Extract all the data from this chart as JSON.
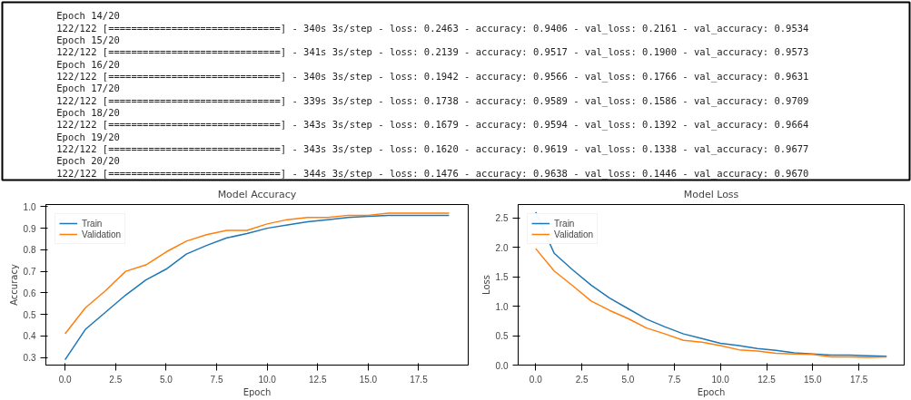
{
  "chart_data": [
    {
      "type": "other",
      "annotations": [
        "Epoch 14/20",
        "122/122 [==============================] - 340s 3s/step - loss: 0.2463 - accuracy: 0.9406 - val_loss: 0.2161 - val_accuracy: 0.9534",
        "Epoch 15/20",
        "122/122 [==============================] - 341s 3s/step - loss: 0.2139 - accuracy: 0.9517 - val_loss: 0.1900 - val_accuracy: 0.9573",
        "Epoch 16/20",
        "122/122 [==============================] - 340s 3s/step - loss: 0.1942 - accuracy: 0.9566 - val_loss: 0.1766 - val_accuracy: 0.9631",
        "Epoch 17/20",
        "122/122 [==============================] - 339s 3s/step - loss: 0.1738 - accuracy: 0.9589 - val_loss: 0.1586 - val_accuracy: 0.9709",
        "Epoch 18/20",
        "122/122 [==============================] - 343s 3s/step - loss: 0.1679 - accuracy: 0.9594 - val_loss: 0.1392 - val_accuracy: 0.9664",
        "Epoch 19/20",
        "122/122 [==============================] - 343s 3s/step - loss: 0.1620 - accuracy: 0.9619 - val_loss: 0.1338 - val_accuracy: 0.9677",
        "Epoch 20/20",
        "122/122 [==============================] - 344s 3s/step - loss: 0.1476 - accuracy: 0.9638 - val_loss: 0.1446 - val_accuracy: 0.9670"
      ]
    },
    {
      "type": "line",
      "title": "Model Accuracy",
      "xlabel": "Epoch",
      "ylabel": "Accuracy",
      "x": [
        0,
        1,
        2,
        3,
        4,
        5,
        6,
        7,
        8,
        9,
        10,
        11,
        12,
        13,
        14,
        15,
        16,
        17,
        18,
        19
      ],
      "series": [
        {
          "name": "Train",
          "color": "#1f77b4",
          "values": [
            0.29,
            0.43,
            0.51,
            0.59,
            0.66,
            0.71,
            0.78,
            0.82,
            0.855,
            0.875,
            0.9,
            0.915,
            0.93,
            0.94,
            0.95,
            0.955,
            0.96,
            0.96,
            0.96,
            0.96
          ]
        },
        {
          "name": "Validation",
          "color": "#ff7f0e",
          "values": [
            0.41,
            0.53,
            0.61,
            0.7,
            0.73,
            0.79,
            0.84,
            0.87,
            0.89,
            0.89,
            0.92,
            0.94,
            0.95,
            0.95,
            0.96,
            0.96,
            0.97,
            0.97,
            0.97,
            0.97
          ]
        }
      ],
      "xlim": [
        -0.95,
        19.95
      ],
      "ylim": [
        0.265,
        1.01
      ],
      "xticks": [
        {
          "value": 0,
          "label": "0.0"
        },
        2.5,
        {
          "value": 5,
          "label": "5.0"
        },
        7.5,
        {
          "value": 10,
          "label": "10.0"
        },
        12.5,
        {
          "value": 15,
          "label": "15.0"
        },
        17.5
      ],
      "yticks": [
        0.3,
        0.4,
        0.5,
        0.6,
        0.7,
        0.8,
        0.9,
        {
          "value": 1,
          "label": "1.0"
        }
      ],
      "grid": false,
      "legend": "top left",
      "marker": "none",
      "line_style": "solid"
    },
    {
      "type": "line",
      "title": "Model Loss",
      "xlabel": "Epoch",
      "ylabel": "Loss",
      "x": [
        0,
        1,
        2,
        3,
        4,
        5,
        6,
        7,
        8,
        9,
        10,
        11,
        12,
        13,
        14,
        15,
        16,
        17,
        18,
        19
      ],
      "series": [
        {
          "name": "Train",
          "color": "#1f77b4",
          "values": [
            2.6,
            1.9,
            1.62,
            1.36,
            1.14,
            0.96,
            0.78,
            0.65,
            0.53,
            0.45,
            0.37,
            0.33,
            0.28,
            0.25,
            0.21,
            0.19,
            0.17,
            0.17,
            0.16,
            0.15
          ]
        },
        {
          "name": "Validation",
          "color": "#ff7f0e",
          "values": [
            1.98,
            1.6,
            1.35,
            1.09,
            0.93,
            0.79,
            0.63,
            0.53,
            0.42,
            0.39,
            0.33,
            0.26,
            0.24,
            0.2,
            0.19,
            0.18,
            0.14,
            0.14,
            0.13,
            0.14
          ]
        }
      ],
      "xlim": [
        -0.95,
        19.95
      ],
      "ylim": [
        0,
        2.73
      ],
      "xticks": [
        {
          "value": 0,
          "label": "0.0"
        },
        2.5,
        {
          "value": 5,
          "label": "5.0"
        },
        7.5,
        {
          "value": 10,
          "label": "10.0"
        },
        12.5,
        {
          "value": 15,
          "label": "15.0"
        },
        17.5
      ],
      "yticks": [
        {
          "value": 0,
          "label": "0.0"
        },
        0.5,
        {
          "value": 1,
          "label": "1.0"
        },
        1.5,
        {
          "value": 2,
          "label": "2.0"
        },
        2.5
      ],
      "grid": false,
      "legend": "top left",
      "marker": "none",
      "line_style": "solid"
    }
  ]
}
